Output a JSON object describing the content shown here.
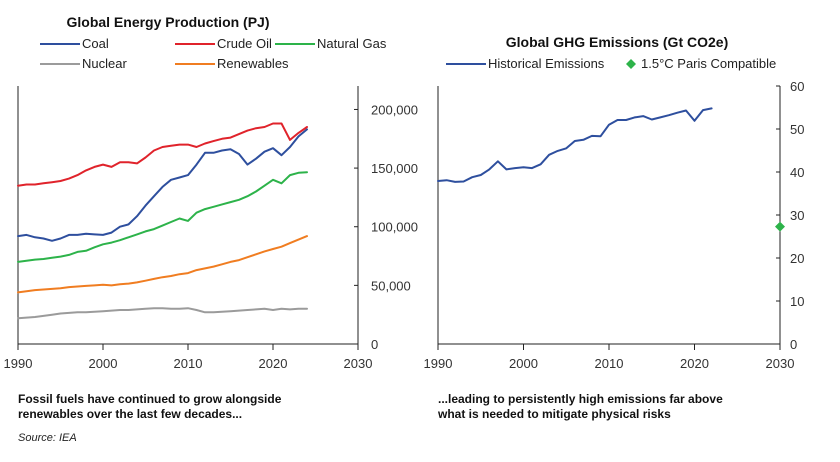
{
  "chart_data": [
    {
      "type": "line",
      "title": "Global Energy Production (PJ)",
      "xlabel": "",
      "ylabel": "",
      "xlim": [
        1990,
        2030
      ],
      "ylim": [
        0,
        220000
      ],
      "x_ticks": [
        1990,
        2000,
        2010,
        2020,
        2030
      ],
      "y_ticks": [
        0,
        50000,
        100000,
        150000,
        200000
      ],
      "y_tick_labels": [
        "0",
        "50,000",
        "100,000",
        "150,000",
        "200,000"
      ],
      "y_axis_side": "right",
      "legend_position": "top",
      "series": [
        {
          "name": "Coal",
          "color": "#2e4f9e",
          "x": [
            1990,
            1991,
            1992,
            1993,
            1994,
            1995,
            1996,
            1997,
            1998,
            1999,
            2000,
            2001,
            2002,
            2003,
            2004,
            2005,
            2006,
            2007,
            2008,
            2009,
            2010,
            2011,
            2012,
            2013,
            2014,
            2015,
            2016,
            2017,
            2018,
            2019,
            2020,
            2021,
            2022,
            2023,
            2024
          ],
          "values": [
            92000,
            93000,
            91000,
            90000,
            88000,
            90000,
            93000,
            93000,
            94000,
            93500,
            93000,
            95000,
            100000,
            102000,
            109000,
            118000,
            126000,
            134000,
            140000,
            142000,
            144000,
            153000,
            163000,
            163000,
            165000,
            166000,
            162000,
            153000,
            158000,
            164000,
            167000,
            161000,
            168000,
            177000,
            183000
          ]
        },
        {
          "name": "Crude Oil",
          "color": "#e0232b",
          "x": [
            1990,
            1991,
            1992,
            1993,
            1994,
            1995,
            1996,
            1997,
            1998,
            1999,
            2000,
            2001,
            2002,
            2003,
            2004,
            2005,
            2006,
            2007,
            2008,
            2009,
            2010,
            2011,
            2012,
            2013,
            2014,
            2015,
            2016,
            2017,
            2018,
            2019,
            2020,
            2021,
            2022,
            2023,
            2024
          ],
          "values": [
            135000,
            136000,
            136000,
            137000,
            138000,
            139000,
            141000,
            144000,
            148000,
            151000,
            153000,
            151000,
            155000,
            155000,
            154000,
            159000,
            165000,
            168000,
            169000,
            170000,
            170000,
            168000,
            171000,
            173000,
            175000,
            176000,
            179000,
            182000,
            184000,
            185000,
            188000,
            188000,
            174000,
            180000,
            185000
          ]
        },
        {
          "name": "Natural Gas",
          "color": "#2db34a",
          "x": [
            1990,
            1991,
            1992,
            1993,
            1994,
            1995,
            1996,
            1997,
            1998,
            1999,
            2000,
            2001,
            2002,
            2003,
            2004,
            2005,
            2006,
            2007,
            2008,
            2009,
            2010,
            2011,
            2012,
            2013,
            2014,
            2015,
            2016,
            2017,
            2018,
            2019,
            2020,
            2021,
            2022,
            2023,
            2024
          ],
          "values": [
            70000,
            71000,
            72000,
            72500,
            73500,
            74500,
            76000,
            78500,
            79500,
            82500,
            85000,
            86500,
            88500,
            91000,
            93500,
            96000,
            98000,
            101000,
            104000,
            107000,
            105000,
            112000,
            115000,
            117000,
            119000,
            121000,
            123000,
            126000,
            130000,
            135000,
            140000,
            137000,
            144000,
            146000,
            146500
          ]
        },
        {
          "name": "Nuclear",
          "color": "#9b9b9b",
          "x": [
            1990,
            1991,
            1992,
            1993,
            1994,
            1995,
            1996,
            1997,
            1998,
            1999,
            2000,
            2001,
            2002,
            2003,
            2004,
            2005,
            2006,
            2007,
            2008,
            2009,
            2010,
            2011,
            2012,
            2013,
            2014,
            2015,
            2016,
            2017,
            2018,
            2019,
            2020,
            2021,
            2022,
            2023,
            2024
          ],
          "values": [
            22000,
            22500,
            23000,
            24000,
            25000,
            26000,
            26500,
            27000,
            27000,
            27500,
            28000,
            28500,
            29000,
            29000,
            29500,
            30000,
            30500,
            30500,
            30000,
            30000,
            30500,
            29000,
            27000,
            27000,
            27500,
            28000,
            28500,
            29000,
            29500,
            30000,
            29000,
            30000,
            29500,
            30000,
            30000
          ]
        },
        {
          "name": "Renewables",
          "color": "#f07d21",
          "x": [
            1990,
            1991,
            1992,
            1993,
            1994,
            1995,
            1996,
            1997,
            1998,
            1999,
            2000,
            2001,
            2002,
            2003,
            2004,
            2005,
            2006,
            2007,
            2008,
            2009,
            2010,
            2011,
            2012,
            2013,
            2014,
            2015,
            2016,
            2017,
            2018,
            2019,
            2020,
            2021,
            2022,
            2023,
            2024
          ],
          "values": [
            44000,
            45000,
            46000,
            46500,
            47000,
            47500,
            48500,
            49000,
            49500,
            50000,
            50500,
            50000,
            51000,
            51500,
            52500,
            54000,
            55500,
            57000,
            58000,
            59500,
            60500,
            63000,
            64500,
            66000,
            68000,
            70000,
            71500,
            74000,
            76500,
            79000,
            81000,
            83000,
            86000,
            89000,
            92000
          ]
        }
      ]
    },
    {
      "type": "line",
      "title": "Global GHG Emissions (Gt CO2e)",
      "xlabel": "",
      "ylabel": "",
      "xlim": [
        1990,
        2030
      ],
      "ylim": [
        0,
        60
      ],
      "x_ticks": [
        1990,
        2000,
        2010,
        2020,
        2030
      ],
      "y_ticks": [
        0,
        10,
        20,
        30,
        40,
        50,
        60
      ],
      "y_axis_side": "right",
      "legend_position": "top",
      "series": [
        {
          "name": "Historical Emissions",
          "color": "#2e4f9e",
          "mark": "line",
          "x": [
            1990,
            1991,
            1992,
            1993,
            1994,
            1995,
            1996,
            1997,
            1998,
            1999,
            2000,
            2001,
            2002,
            2003,
            2004,
            2005,
            2006,
            2007,
            2008,
            2009,
            2010,
            2011,
            2012,
            2013,
            2014,
            2015,
            2016,
            2017,
            2018,
            2019,
            2020,
            2021,
            2022,
            2023
          ],
          "values": [
            37.9,
            38.1,
            37.7,
            37.8,
            38.8,
            39.3,
            40.6,
            42.5,
            40.6,
            40.9,
            41.1,
            40.9,
            41.8,
            44.0,
            44.9,
            45.5,
            47.2,
            47.5,
            48.4,
            48.3,
            51.0,
            52.1,
            52.1,
            52.7,
            53.0,
            52.2,
            52.7,
            53.2,
            53.8,
            54.3,
            51.9,
            54.4,
            54.8,
            null
          ],
          "note": "series ends at 2022"
        },
        {
          "name": "1.5°C Paris Compatible",
          "color": "#2db34a",
          "mark": "diamond",
          "x": [
            2030
          ],
          "values": [
            27.3
          ]
        }
      ]
    }
  ],
  "captions": {
    "left_line1": "Fossil fuels have continued to grow alongside",
    "left_line2": "renewables over the last few decades...",
    "right_line1": "...leading to persistently high emissions far above",
    "right_line2": "what is needed to mitigate physical risks",
    "source": "Source: IEA"
  }
}
